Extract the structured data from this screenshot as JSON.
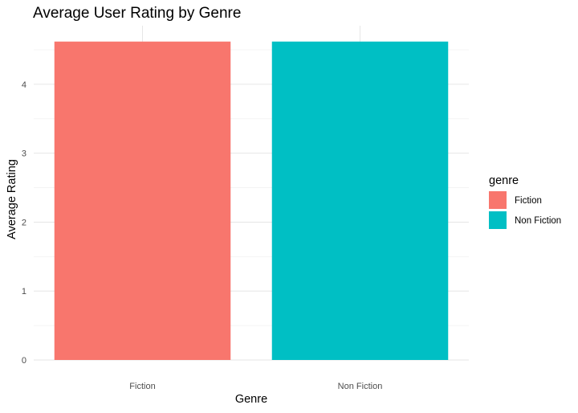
{
  "chart_data": {
    "type": "bar",
    "title": "Average User Rating by Genre",
    "xlabel": "Genre",
    "ylabel": "Average Rating",
    "categories": [
      "Fiction",
      "Non Fiction"
    ],
    "values": [
      4.62,
      4.62
    ],
    "colors": [
      "#F8766D",
      "#00BFC4"
    ],
    "ylim": [
      0,
      4.85
    ],
    "yticks": [
      0,
      1,
      2,
      3,
      4
    ],
    "grid": true,
    "legend": {
      "title": "genre",
      "position": "right",
      "entries": [
        "Fiction",
        "Non Fiction"
      ]
    }
  }
}
